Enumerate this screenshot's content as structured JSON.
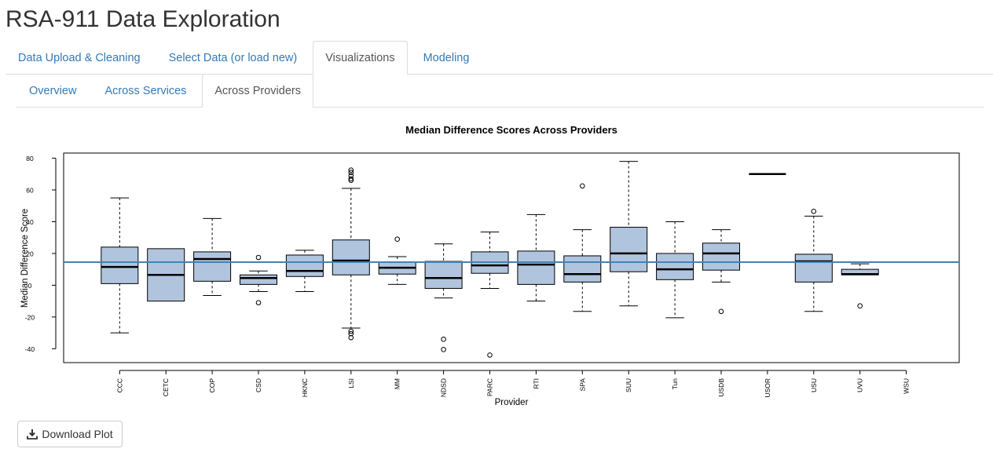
{
  "app": {
    "title": "RSA-911 Data Exploration"
  },
  "main_tabs": [
    {
      "label": "Data Upload & Cleaning",
      "active": false
    },
    {
      "label": "Select Data (or load new)",
      "active": false
    },
    {
      "label": "Visualizations",
      "active": true
    },
    {
      "label": "Modeling",
      "active": false
    }
  ],
  "sub_tabs": [
    {
      "label": "Overview",
      "active": false
    },
    {
      "label": "Across Services",
      "active": false
    },
    {
      "label": "Across Providers",
      "active": true
    }
  ],
  "chart_data": {
    "type": "boxplot",
    "title": "Median Difference Scores Across Providers",
    "xlabel": "Provider",
    "ylabel": "Median Difference Score",
    "ylim": [
      -50,
      82
    ],
    "yticks": [
      -40,
      -20,
      0,
      20,
      40,
      60,
      80
    ],
    "reference_line": 14.5,
    "box_color": "#b0c4de",
    "reference_line_color": "#4682b4",
    "categories": [
      "CCC",
      "CETC",
      "COP",
      "CSD",
      "HKNC",
      "LSI",
      "MM",
      "NDSD",
      "PARC",
      "RTI",
      "SPA",
      "SUU",
      "Tun",
      "USDB",
      "USOR",
      "USU",
      "UVU",
      "WSU"
    ],
    "boxes": [
      {
        "label": "CCC",
        "whisker_low": -30,
        "q1": 1,
        "median": 11.5,
        "q3": 24,
        "whisker_high": 55,
        "outliers": []
      },
      {
        "label": "CETC",
        "whisker_low": -10,
        "q1": -10,
        "median": 6.5,
        "q3": 23,
        "whisker_high": 23,
        "outliers": []
      },
      {
        "label": "COP",
        "whisker_low": -6.5,
        "q1": 2.5,
        "median": 16.5,
        "q3": 21,
        "whisker_high": 42,
        "outliers": []
      },
      {
        "label": "CSD",
        "whisker_low": -4,
        "q1": 0.5,
        "median": 4.5,
        "q3": 6.5,
        "whisker_high": 9,
        "outliers": [
          17.5,
          -11
        ]
      },
      {
        "label": "HKNC",
        "whisker_low": -4,
        "q1": 5.5,
        "median": 9,
        "q3": 19,
        "whisker_high": 22,
        "outliers": []
      },
      {
        "label": "LSI",
        "whisker_low": -27,
        "q1": 6.5,
        "median": 15.5,
        "q3": 28.5,
        "whisker_high": 61,
        "outliers": [
          66,
          67,
          69,
          71,
          72.5,
          -29,
          -30.5,
          -33
        ]
      },
      {
        "label": "MM",
        "whisker_low": 0.5,
        "q1": 7,
        "median": 11,
        "q3": 14.5,
        "whisker_high": 18,
        "outliers": [
          29
        ]
      },
      {
        "label": "NDSD",
        "whisker_low": -8,
        "q1": -2,
        "median": 4.5,
        "q3": 15,
        "whisker_high": 26,
        "outliers": [
          -34,
          -40.5
        ]
      },
      {
        "label": "PARC",
        "whisker_low": -2,
        "q1": 7.5,
        "median": 12.5,
        "q3": 21,
        "whisker_high": 33.5,
        "outliers": [
          -44
        ]
      },
      {
        "label": "RTI",
        "whisker_low": -10,
        "q1": 0.5,
        "median": 13,
        "q3": 21.5,
        "whisker_high": 44.5,
        "outliers": []
      },
      {
        "label": "SPA",
        "whisker_low": -16.5,
        "q1": 2,
        "median": 7,
        "q3": 18.5,
        "whisker_high": 35,
        "outliers": [
          62.5
        ]
      },
      {
        "label": "SUU",
        "whisker_low": -13,
        "q1": 8.5,
        "median": 20,
        "q3": 36.5,
        "whisker_high": 78,
        "outliers": []
      },
      {
        "label": "Tun",
        "whisker_low": -20.5,
        "q1": 3.5,
        "median": 10,
        "q3": 20,
        "whisker_high": 40,
        "outliers": []
      },
      {
        "label": "USDB",
        "whisker_low": 2,
        "q1": 9.5,
        "median": 20,
        "q3": 26.5,
        "whisker_high": 35,
        "outliers": [
          -16.5
        ]
      },
      {
        "label": "USOR",
        "whisker_low": 70,
        "q1": 70,
        "median": 70,
        "q3": 70,
        "whisker_high": 70,
        "outliers": []
      },
      {
        "label": "USU",
        "whisker_low": -16.5,
        "q1": 2,
        "median": 15,
        "q3": 19.5,
        "whisker_high": 43.5,
        "outliers": [
          46.5
        ]
      },
      {
        "label": "UVU",
        "whisker_low": 6.5,
        "q1": 6.5,
        "median": 7,
        "q3": 10,
        "whisker_high": 13.5,
        "outliers": [
          -13
        ]
      },
      {
        "label": "WSU",
        "whisker_low": null,
        "q1": null,
        "median": null,
        "q3": null,
        "whisker_high": null,
        "outliers": []
      }
    ]
  },
  "download": {
    "icon": "download-icon",
    "label": "Download Plot"
  }
}
